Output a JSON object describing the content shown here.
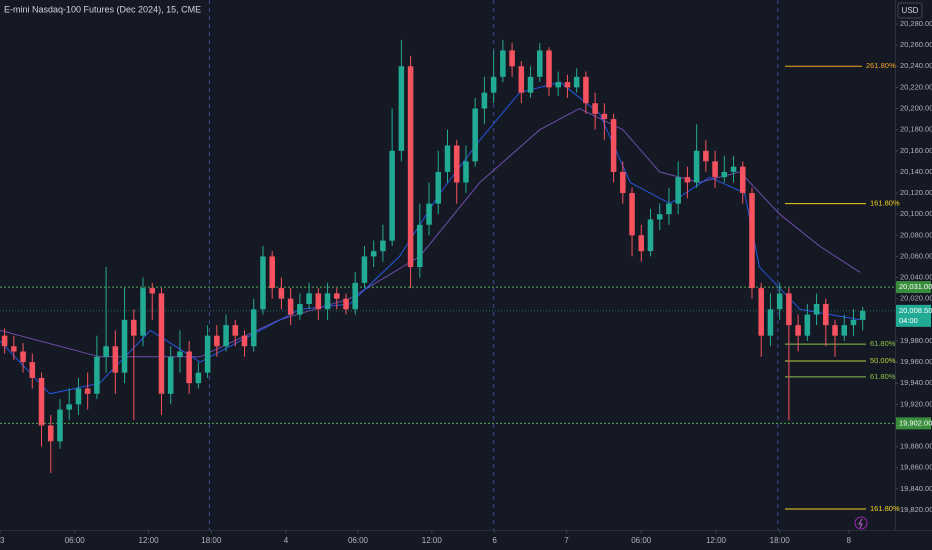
{
  "chart_data": {
    "type": "candlestick",
    "title": "E-mini Nasdaq-100 Futures (Dec 2024), 15, CME",
    "currency": "USD",
    "up_color": "#22ab94",
    "down_color": "#f7525f",
    "ylim": [
      19820,
      20280
    ],
    "xlim": [
      -0.5,
      96.5
    ],
    "yticks": [
      {
        "value": 20280,
        "label": "20,280.00"
      },
      {
        "value": 20260,
        "label": "20,260.00"
      },
      {
        "value": 20240,
        "label": "20,240.00"
      },
      {
        "value": 20220,
        "label": "20,220.00"
      },
      {
        "value": 20200,
        "label": "20,200.00"
      },
      {
        "value": 20180,
        "label": "20,180.00"
      },
      {
        "value": 20160,
        "label": "20,160.00"
      },
      {
        "value": 20140,
        "label": "20,140.00"
      },
      {
        "value": 20120,
        "label": "20,120.00"
      },
      {
        "value": 20100,
        "label": "20,100.00"
      },
      {
        "value": 20080,
        "label": "20,080.00"
      },
      {
        "value": 20060,
        "label": "20,060.00"
      },
      {
        "value": 20040,
        "label": "20,040.00"
      },
      {
        "value": 20020,
        "label": "20,020.00"
      },
      {
        "value": 19980,
        "label": "19,980.00"
      },
      {
        "value": 19960,
        "label": "19,960.00"
      },
      {
        "value": 19940,
        "label": "19,940.00"
      },
      {
        "value": 19920,
        "label": "19,920.00"
      },
      {
        "value": 19880,
        "label": "19,880.00"
      },
      {
        "value": 19860,
        "label": "19,860.00"
      },
      {
        "value": 19840,
        "label": "19,840.00"
      },
      {
        "value": 19820,
        "label": "19,820.00"
      }
    ],
    "xticks": [
      {
        "value": -0.5,
        "label": "3"
      },
      {
        "value": 7.6,
        "label": "06:00"
      },
      {
        "value": 15.6,
        "label": "12:00"
      },
      {
        "value": 22.4,
        "label": "18:00"
      },
      {
        "value": 30.5,
        "label": "4"
      },
      {
        "value": 38.3,
        "label": "06:00"
      },
      {
        "value": 46.3,
        "label": "12:00"
      },
      {
        "value": 53.1,
        "label": "6"
      },
      {
        "value": 60.9,
        "label": "7"
      },
      {
        "value": 69,
        "label": "06:00"
      },
      {
        "value": 77.1,
        "label": "12:00"
      },
      {
        "value": 84,
        "label": "18:00"
      },
      {
        "value": 91.5,
        "label": "8"
      }
    ],
    "session_breaks": [
      22.2,
      53,
      83.8
    ],
    "ohlc": [
      [
        19985,
        19992,
        19968,
        19975
      ],
      [
        19975,
        19985,
        19962,
        19970
      ],
      [
        19970,
        19978,
        19950,
        19960
      ],
      [
        19960,
        19968,
        19935,
        19945
      ],
      [
        19945,
        19950,
        19880,
        19900
      ],
      [
        19900,
        19910,
        19855,
        19885
      ],
      [
        19885,
        19925,
        19878,
        19915
      ],
      [
        19915,
        19935,
        19905,
        19920
      ],
      [
        19920,
        19945,
        19910,
        19935
      ],
      [
        19935,
        19950,
        19915,
        19930
      ],
      [
        19930,
        19985,
        19925,
        19965
      ],
      [
        19965,
        20050,
        19950,
        19975
      ],
      [
        19975,
        19990,
        19930,
        19950
      ],
      [
        19950,
        20030,
        19940,
        20000
      ],
      [
        20000,
        20010,
        19905,
        19985
      ],
      [
        19985,
        20040,
        19975,
        20030
      ],
      [
        20030,
        20035,
        20000,
        20025
      ],
      [
        20025,
        20030,
        19910,
        19930
      ],
      [
        19930,
        19975,
        19920,
        19965
      ],
      [
        19965,
        19990,
        19950,
        19970
      ],
      [
        19970,
        19980,
        19930,
        19940
      ],
      [
        19940,
        19960,
        19935,
        19950
      ],
      [
        19950,
        19995,
        19945,
        19985
      ],
      [
        19985,
        19995,
        19965,
        19975
      ],
      [
        19975,
        20005,
        19970,
        19995
      ],
      [
        19995,
        20000,
        19975,
        19985
      ],
      [
        19985,
        19990,
        19965,
        19975
      ],
      [
        19975,
        20020,
        19970,
        20010
      ],
      [
        20010,
        20070,
        20005,
        20060
      ],
      [
        20060,
        20065,
        20020,
        20030
      ],
      [
        20030,
        20040,
        20010,
        20020
      ],
      [
        20020,
        20030,
        19995,
        20005
      ],
      [
        20005,
        20025,
        20000,
        20015
      ],
      [
        20015,
        20035,
        20010,
        20025
      ],
      [
        20025,
        20030,
        20000,
        20010
      ],
      [
        20010,
        20035,
        20000,
        20025
      ],
      [
        20025,
        20030,
        20010,
        20020
      ],
      [
        20020,
        20025,
        20005,
        20010
      ],
      [
        20010,
        20045,
        20005,
        20035
      ],
      [
        20035,
        20070,
        20030,
        20060
      ],
      [
        20060,
        20075,
        20050,
        20065
      ],
      [
        20065,
        20090,
        20055,
        20075
      ],
      [
        20075,
        20200,
        20070,
        20160
      ],
      [
        20160,
        20265,
        20150,
        20240
      ],
      [
        20240,
        20250,
        20030,
        20050
      ],
      [
        20050,
        20110,
        20040,
        20090
      ],
      [
        20090,
        20130,
        20080,
        20110
      ],
      [
        20110,
        20160,
        20100,
        20140
      ],
      [
        20140,
        20180,
        20130,
        20165
      ],
      [
        20165,
        20170,
        20110,
        20130
      ],
      [
        20130,
        20165,
        20120,
        20150
      ],
      [
        20150,
        20210,
        20145,
        20200
      ],
      [
        20200,
        20230,
        20185,
        20215
      ],
      [
        20215,
        20255,
        20205,
        20230
      ],
      [
        20230,
        20265,
        20225,
        20255
      ],
      [
        20255,
        20262,
        20230,
        20240
      ],
      [
        20240,
        20245,
        20205,
        20215
      ],
      [
        20215,
        20240,
        20210,
        20230
      ],
      [
        20230,
        20262,
        20225,
        20255
      ],
      [
        20255,
        20258,
        20212,
        20220
      ],
      [
        20220,
        20235,
        20212,
        20225
      ],
      [
        20225,
        20232,
        20210,
        20220
      ],
      [
        20220,
        20238,
        20215,
        20230
      ],
      [
        20230,
        20235,
        20195,
        20205
      ],
      [
        20205,
        20215,
        20180,
        20195
      ],
      [
        20195,
        20205,
        20170,
        20190
      ],
      [
        20190,
        20195,
        20130,
        20140
      ],
      [
        20140,
        20150,
        20110,
        20120
      ],
      [
        20120,
        20125,
        20060,
        20080
      ],
      [
        20080,
        20090,
        20055,
        20065
      ],
      [
        20065,
        20105,
        20060,
        20095
      ],
      [
        20095,
        20110,
        20085,
        20100
      ],
      [
        20100,
        20125,
        20090,
        20110
      ],
      [
        20110,
        20150,
        20100,
        20135
      ],
      [
        20135,
        20145,
        20115,
        20130
      ],
      [
        20130,
        20185,
        20125,
        20160
      ],
      [
        20160,
        20170,
        20140,
        20150
      ],
      [
        20150,
        20160,
        20125,
        20135
      ],
      [
        20135,
        20155,
        20130,
        20140
      ],
      [
        20140,
        20155,
        20130,
        20145
      ],
      [
        20145,
        20150,
        20110,
        20120
      ],
      [
        20120,
        20125,
        20020,
        20030
      ],
      [
        20030,
        20035,
        19965,
        19985
      ],
      [
        19985,
        20025,
        19975,
        20010
      ],
      [
        20010,
        20035,
        20000,
        20025
      ],
      [
        20025,
        20030,
        19905,
        19995
      ],
      [
        19995,
        20005,
        19970,
        19985
      ],
      [
        19985,
        20015,
        19980,
        20005
      ],
      [
        20005,
        20025,
        19995,
        20015
      ],
      [
        20015,
        20020,
        19975,
        19995
      ],
      [
        19995,
        20000,
        19965,
        19985
      ],
      [
        19985,
        20005,
        19980,
        19995
      ],
      [
        19995,
        20010,
        19985,
        20000
      ],
      [
        20000,
        20012,
        19990,
        20008.5
      ]
    ],
    "series": [
      {
        "color": "#7e57c2",
        "x": [
          -0.5,
          10.3,
          21.2,
          29.8,
          37.4,
          45,
          51.5,
          58,
          62.3,
          67,
          71,
          75.3,
          79.7,
          84,
          88.3,
          92.7
        ],
        "values": [
          19990,
          19965,
          19965,
          20000,
          20020,
          20060,
          20130,
          20180,
          20200,
          20180,
          20140,
          20130,
          20140,
          20100,
          20070,
          20045
        ]
      },
      {
        "color": "#2962ff",
        "x": [
          -0.5,
          4.9,
          10.3,
          15.8,
          21.2,
          27.7,
          32,
          37.4,
          42.8,
          47.2,
          51.5,
          55.8,
          60.2,
          64.5,
          67.8,
          72.1,
          76.4,
          80.2,
          81.8,
          86.2,
          92.7
        ],
        "values": [
          19980,
          19930,
          19940,
          19990,
          19960,
          19990,
          20010,
          20015,
          20060,
          20120,
          20170,
          20215,
          20225,
          20195,
          20130,
          20110,
          20135,
          20120,
          20050,
          20010,
          20000
        ]
      }
    ],
    "price_lines": [
      {
        "value": 20031,
        "label": "20,031.00"
      },
      {
        "value": 19902,
        "label": "19,902.00"
      }
    ],
    "last_price": {
      "value": 20008.5,
      "label": "20,008.50",
      "countdown": "04:00"
    },
    "fib_levels": [
      {
        "value": 20240,
        "label": "261.80%",
        "color": "#f5a623"
      },
      {
        "value": 20110,
        "label": "161.80%",
        "color": "#f2d21b"
      },
      {
        "value": 19977,
        "label": "61.80%",
        "color": "#8bc34a"
      },
      {
        "value": 19961,
        "label": "50.00%",
        "color": "#b5d43b"
      },
      {
        "value": 19946,
        "label": "61.80%",
        "color": "#8bc34a"
      },
      {
        "value": 19821,
        "label": "161.80%",
        "color": "#f2d21b"
      }
    ]
  }
}
